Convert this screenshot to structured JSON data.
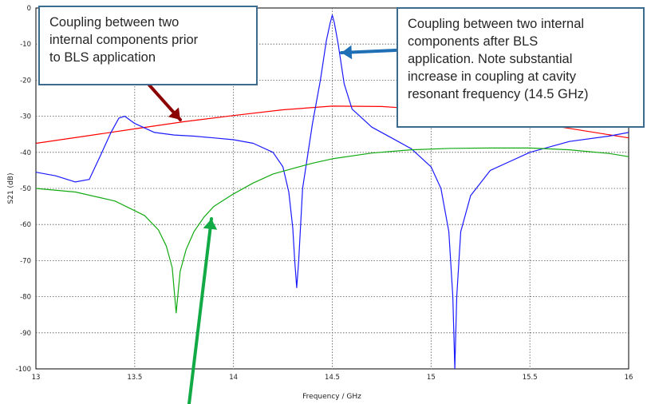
{
  "chart_data": {
    "type": "line",
    "xlabel": "Frequency / GHz",
    "ylabel": "S21 (dB)",
    "xlim": [
      13,
      16
    ],
    "ylim": [
      -100,
      0
    ],
    "xticks": [
      "13",
      "13.5",
      "14",
      "14.5",
      "15",
      "15.5",
      "16"
    ],
    "yticks": [
      "0",
      "-10",
      "-20",
      "-30",
      "-40",
      "-50",
      "-60",
      "-70",
      "-80",
      "-90",
      "-100"
    ],
    "grid": true,
    "series": [
      {
        "color": "#ff0000",
        "x": [
          13.0,
          13.25,
          13.5,
          13.75,
          14.0,
          14.25,
          14.5,
          14.75,
          15.0,
          15.25,
          15.5,
          15.75,
          16.0
        ],
        "y": [
          -37.5,
          -35.5,
          -33.5,
          -31.5,
          -29.8,
          -28.2,
          -27.2,
          -27.3,
          -28.2,
          -29.8,
          -31.6,
          -33.8,
          -36.0
        ]
      },
      {
        "color": "#1a1aff",
        "x": [
          13.0,
          13.1,
          13.2,
          13.27,
          13.33,
          13.38,
          13.42,
          13.45,
          13.5,
          13.6,
          13.7,
          13.8,
          13.9,
          14.0,
          14.1,
          14.2,
          14.25,
          14.28,
          14.3,
          14.31,
          14.32,
          14.33,
          14.35,
          14.4,
          14.44,
          14.47,
          14.49,
          14.5,
          14.51,
          14.53,
          14.56,
          14.6,
          14.7,
          14.8,
          14.9,
          15.0,
          15.05,
          15.09,
          15.11,
          15.12,
          15.13,
          15.15,
          15.2,
          15.3,
          15.5,
          15.7,
          15.9,
          16.0
        ],
        "y": [
          -45.5,
          -46.5,
          -48.2,
          -47.5,
          -40.5,
          -34.5,
          -30.5,
          -30.0,
          -32.0,
          -34.5,
          -35.2,
          -35.5,
          -36.0,
          -36.5,
          -37.5,
          -40.0,
          -44.0,
          -51.0,
          -61.0,
          -70.0,
          -77.5,
          -70.0,
          -50.0,
          -32.0,
          -20.0,
          -9.0,
          -4.0,
          -2.0,
          -4.0,
          -10.0,
          -21.0,
          -28.0,
          -33.0,
          -36.0,
          -39.0,
          -44.0,
          -50.0,
          -62.0,
          -80.0,
          -100.0,
          -80.0,
          -62.0,
          -52.0,
          -45.0,
          -40.0,
          -37.0,
          -35.5,
          -34.5
        ]
      },
      {
        "color": "#11aa11",
        "x": [
          13.0,
          13.2,
          13.4,
          13.55,
          13.62,
          13.66,
          13.69,
          13.71,
          13.73,
          13.76,
          13.8,
          13.85,
          13.9,
          14.0,
          14.1,
          14.2,
          14.3,
          14.4,
          14.5,
          14.7,
          14.9,
          15.1,
          15.3,
          15.5,
          15.7,
          15.9,
          16.0
        ],
        "y": [
          -50.0,
          -51.0,
          -53.5,
          -57.5,
          -61.5,
          -66.0,
          -72.0,
          -84.5,
          -73.0,
          -67.0,
          -62.0,
          -58.0,
          -55.0,
          -51.5,
          -48.5,
          -46.0,
          -44.5,
          -43.0,
          -41.8,
          -40.2,
          -39.3,
          -38.9,
          -38.8,
          -38.8,
          -39.3,
          -40.3,
          -41.2
        ]
      }
    ]
  },
  "annotations": {
    "before": {
      "lines": [
        "Coupling between two",
        "internal components prior",
        "to BLS application"
      ],
      "color": "#8b0000"
    },
    "after": {
      "lines": [
        "Coupling between two internal",
        "components after BLS",
        "application. Note substantial",
        "increase in coupling at cavity",
        "resonant frequency (14.5 GHz)"
      ],
      "color": "#1f6fb5"
    },
    "green_arrow_color": "#11aa44"
  }
}
